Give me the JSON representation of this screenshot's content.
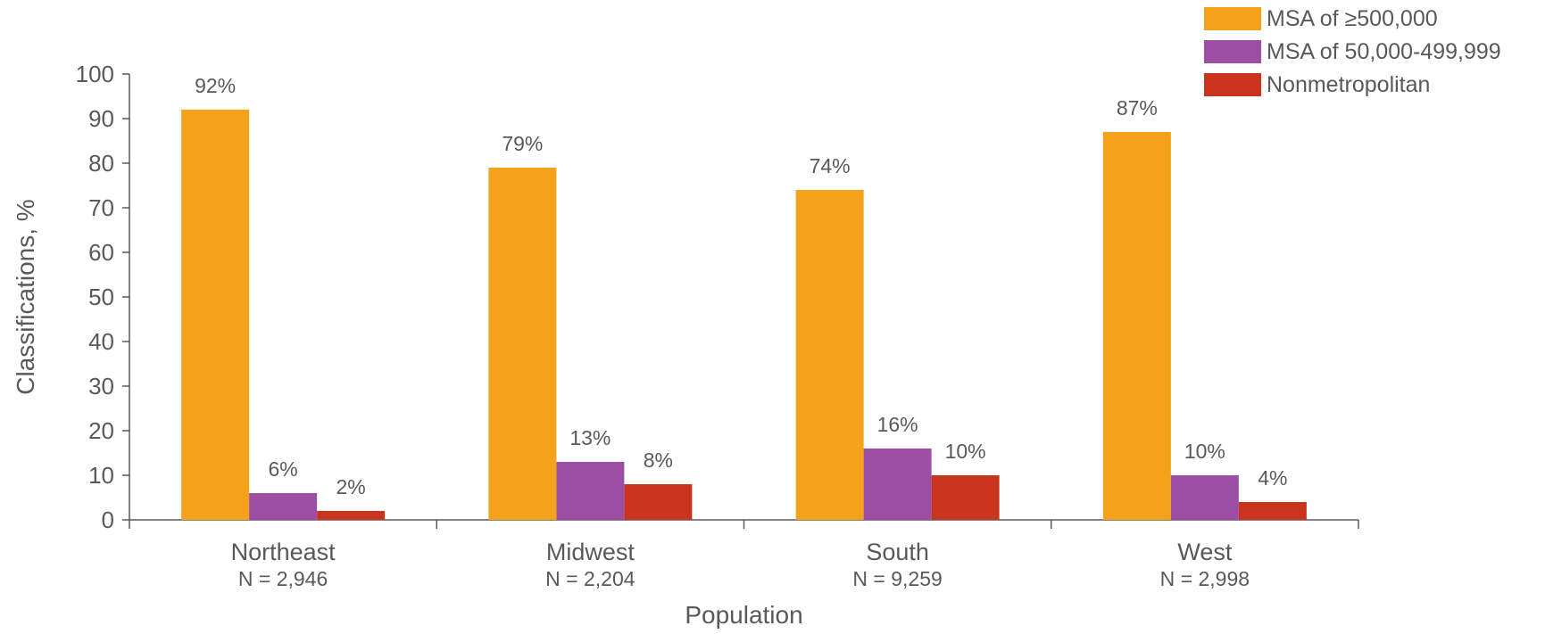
{
  "chart_data": {
    "type": "bar",
    "categories": [
      "Northeast",
      "Midwest",
      "South",
      "West"
    ],
    "category_sublabels": [
      "N = 2,946",
      "N = 2,204",
      "N = 9,259",
      "N = 2,998"
    ],
    "series": [
      {
        "name": "MSA of ≥500,000",
        "values": [
          92,
          79,
          74,
          87
        ],
        "labels": [
          "92%",
          "79%",
          "74%",
          "87%"
        ],
        "color": "#F4A11B"
      },
      {
        "name": "MSA of 50,000-499,999",
        "values": [
          6,
          13,
          16,
          10
        ],
        "labels": [
          "6%",
          "13%",
          "16%",
          "10%"
        ],
        "color": "#9B4EA3"
      },
      {
        "name": "Nonmetropolitan",
        "values": [
          2,
          8,
          10,
          4
        ],
        "labels": [
          "2%",
          "8%",
          "10%",
          "4%"
        ],
        "color": "#C9341E"
      }
    ],
    "title": "",
    "xlabel": "Population",
    "ylabel": "Classifications, %",
    "ylim": [
      0,
      100
    ],
    "yticks": [
      0,
      10,
      20,
      30,
      40,
      50,
      60,
      70,
      80,
      90,
      100
    ],
    "grid": false,
    "legend_position": "top-right"
  },
  "colors": {
    "text": "#595959",
    "axis": "#595959"
  }
}
